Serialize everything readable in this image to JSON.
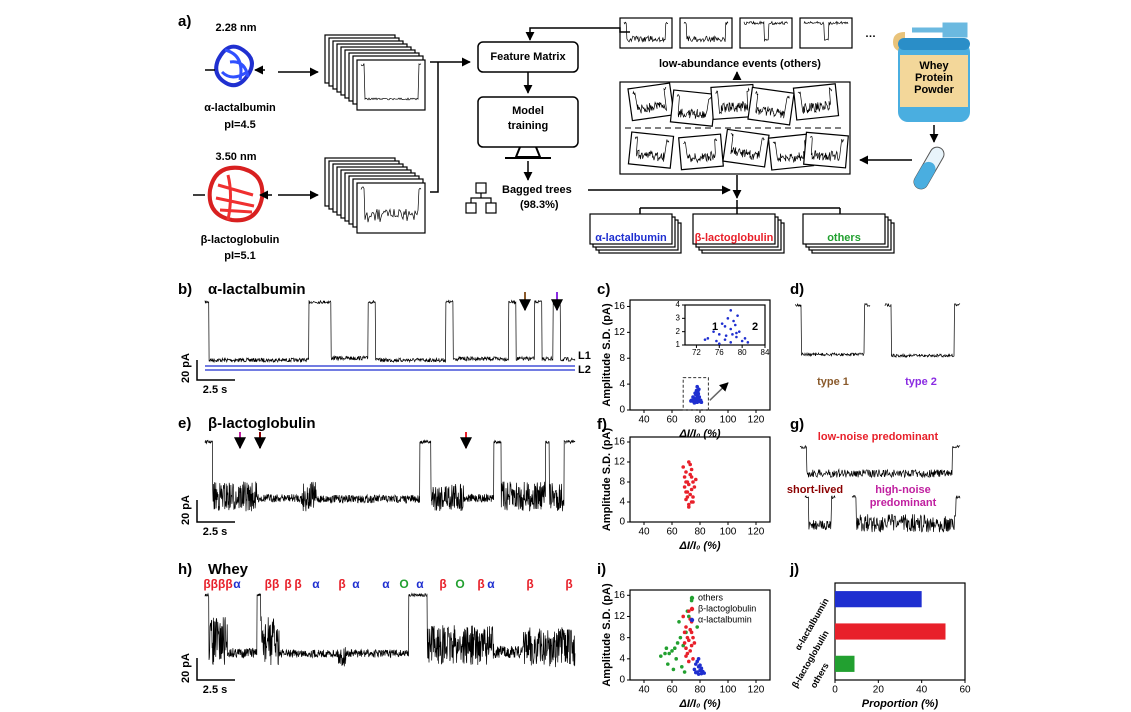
{
  "figure": {
    "a": {
      "label": "a)",
      "protein1": {
        "size": "2.28 nm",
        "name": "α-lactalbumin",
        "pi": "pI=4.5"
      },
      "protein2": {
        "size": "3.50 nm",
        "name": "β-lactoglobulin",
        "pi": "pI=5.1"
      },
      "feature_matrix": "Feature Matrix",
      "model": [
        "Model",
        "training"
      ],
      "bagged": "Bagged trees",
      "accuracy": "(98.3%)",
      "low_abundance": "low-abundance events (others)",
      "ellipsis": "…",
      "whey": [
        "Whey",
        "Protein",
        "Powder"
      ],
      "classes": [
        "α-lactalbumin",
        "β-lactoglobulin",
        "others"
      ]
    },
    "b": {
      "label": "b)",
      "title": "α-lactalbumin",
      "scale_y": "20 pA",
      "scale_x": "2.5 s",
      "levels": [
        "L1",
        "L2"
      ]
    },
    "d": {
      "label": "d)",
      "types": [
        "type 1",
        "type 2"
      ]
    },
    "e": {
      "label": "e)",
      "title": "β-lactoglobulin",
      "scale_y": "20 pA",
      "scale_x": "2.5 s"
    },
    "g": {
      "label": "g)",
      "low": "low-noise predominant",
      "short": "short-lived",
      "high": [
        "high-noise",
        "predominant"
      ]
    },
    "h": {
      "label": "h)",
      "title": "Whey",
      "scale_y": "20 pA",
      "scale_x": "2.5 s",
      "events": [
        "ββββ",
        "α",
        "ββ",
        "β",
        "β",
        "α",
        "β",
        "α",
        "α",
        "O",
        "α",
        "β",
        "O",
        "β",
        "α",
        "β",
        "β"
      ]
    }
  },
  "chart_data": [
    {
      "type": "scatter",
      "label": "c)",
      "xlabel": "ΔI/I₀ (%)",
      "ylabel": "Amplitude S.D. (pA)",
      "xlim": [
        30,
        130
      ],
      "xticks": [
        40,
        60,
        80,
        100,
        120
      ],
      "ylim": [
        0,
        17
      ],
      "yticks": [
        0,
        4,
        8,
        12,
        16
      ],
      "series": [
        {
          "name": "α-lactalbumin",
          "color": "#1f2fd0",
          "x": [
            74,
            75,
            76,
            76.5,
            77,
            77.5,
            78,
            78,
            78.5,
            79,
            79.5,
            80,
            76,
            77,
            78,
            79,
            75.5,
            77.2,
            78.8,
            80.5,
            81,
            73.5,
            79.2,
            78.3
          ],
          "values": [
            1.5,
            2.0,
            1.8,
            2.6,
            1.4,
            3.0,
            2.2,
            1.2,
            2.8,
            1.6,
            2.0,
            1.3,
            1.1,
            2.4,
            3.6,
            1.9,
            1.3,
            1.7,
            2.5,
            1.5,
            1.2,
            1.4,
            3.2,
            1.8
          ]
        }
      ],
      "inset": {
        "xlim": [
          70,
          84
        ],
        "xticks": [
          72,
          76,
          80,
          84
        ],
        "ylim": [
          1,
          4
        ],
        "yticks": [
          1,
          2,
          3,
          4
        ],
        "annotations": [
          "1",
          "2"
        ]
      }
    },
    {
      "type": "scatter",
      "label": "f)",
      "xlabel": "ΔI/I₀ (%)",
      "ylabel": "Amplitude S.D. (pA)",
      "xlim": [
        30,
        130
      ],
      "xticks": [
        40,
        60,
        80,
        100,
        120
      ],
      "ylim": [
        0,
        17
      ],
      "yticks": [
        0,
        4,
        8,
        12,
        16
      ],
      "series": [
        {
          "name": "β-lactoglobulin",
          "color": "#e8202a",
          "x": [
            68,
            70,
            72,
            74,
            71,
            73,
            75,
            69,
            70,
            72,
            74,
            76,
            71,
            73,
            75,
            70,
            72,
            74,
            77,
            69,
            73,
            71,
            75,
            72,
            70,
            74
          ],
          "values": [
            11,
            10,
            12,
            9,
            8,
            9.5,
            8,
            7,
            6,
            7.5,
            6.5,
            7,
            5,
            5.5,
            4,
            4.5,
            3.5,
            10.5,
            8.5,
            9,
            11.5,
            6,
            5,
            3,
            8,
            4
          ]
        }
      ]
    },
    {
      "type": "scatter",
      "label": "i)",
      "xlabel": "ΔI/I₀ (%)",
      "ylabel": "Amplitude S.D. (pA)",
      "legend": "upper right",
      "xlim": [
        30,
        130
      ],
      "xticks": [
        40,
        60,
        80,
        100,
        120
      ],
      "ylim": [
        0,
        17
      ],
      "yticks": [
        0,
        4,
        8,
        12,
        16
      ],
      "series": [
        {
          "name": "others",
          "color": "#22a030",
          "x": [
            52,
            55,
            58,
            60,
            62,
            64,
            66,
            68,
            70,
            72,
            57,
            63,
            67,
            74,
            78,
            65,
            61,
            69,
            56,
            71
          ],
          "values": [
            4.5,
            5,
            5,
            5.5,
            6,
            7,
            8,
            6.5,
            9,
            12,
            3,
            4,
            2.5,
            15,
            10,
            11,
            2,
            1.5,
            6,
            13
          ]
        },
        {
          "name": "β-lactoglobulin",
          "color": "#e8202a",
          "x": [
            68,
            70,
            72,
            74,
            71,
            73,
            75,
            69,
            70,
            72,
            74,
            76,
            71,
            73,
            75,
            70,
            72,
            74,
            69,
            73
          ],
          "values": [
            12,
            10,
            13,
            9,
            8,
            9.5,
            8,
            7,
            6,
            7.5,
            6.5,
            7,
            5,
            5.5,
            4,
            4.5,
            3.5,
            11,
            9,
            11.5
          ]
        },
        {
          "name": "α-lactalbumin",
          "color": "#1f2fd0",
          "x": [
            76,
            77,
            78,
            79,
            80,
            81,
            82,
            78,
            79,
            80,
            77,
            81,
            83,
            79
          ],
          "values": [
            2,
            3,
            1.5,
            2.5,
            1.8,
            1.2,
            1.6,
            3.5,
            1.1,
            2.8,
            1.4,
            2.2,
            1.3,
            4
          ]
        }
      ]
    },
    {
      "type": "barh",
      "label": "j)",
      "xlabel": "Proportion (%)",
      "categories": [
        "α-lactalbumin",
        "β-lactoglobulin",
        "others"
      ],
      "values": [
        40,
        51,
        9
      ],
      "colors": [
        "#1f2fd0",
        "#e8202a",
        "#22a030"
      ],
      "xlim": [
        0,
        60
      ],
      "xticks": [
        0,
        20,
        40,
        60
      ]
    }
  ]
}
